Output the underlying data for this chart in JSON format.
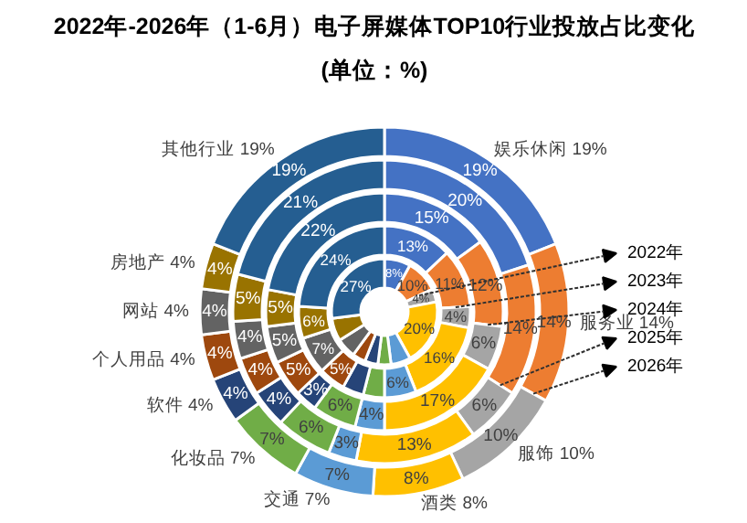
{
  "chart_data": {
    "type": "donut",
    "title": "2022年-2026年（1-6月）电子屏媒体TOP10行业投放占比变化",
    "subtitle": "(单位：%)",
    "categories": [
      "娱乐休闲",
      "服务业",
      "服饰",
      "酒类",
      "交通",
      "化妆品",
      "软件",
      "个人用品",
      "网站",
      "房地产",
      "其他行业"
    ],
    "colors": [
      "#4472c4",
      "#ed7d31",
      "#a5a5a5",
      "#ffc000",
      "#5b9bd5",
      "#70ad47",
      "#264478",
      "#9e480e",
      "#636363",
      "#997300",
      "#255e91"
    ],
    "series": [
      {
        "name": "2022年",
        "values": [
          8,
          10,
          4,
          20,
          6,
          4,
          4,
          4,
          6,
          7,
          27
        ],
        "value_labels": [
          "8%",
          "10%",
          "4%",
          "20%",
          null,
          null,
          null,
          null,
          null,
          null,
          "27%"
        ]
      },
      {
        "name": "2023年",
        "values": [
          13,
          11,
          4,
          16,
          6,
          4,
          4,
          5,
          7,
          6,
          24
        ],
        "value_labels": [
          "13%",
          "11%",
          "4%",
          "16%",
          "6%",
          null,
          null,
          "5%",
          "7%",
          "6%",
          "24%"
        ]
      },
      {
        "name": "2024年",
        "values": [
          15,
          12,
          6,
          17,
          4,
          6,
          3,
          5,
          5,
          5,
          22
        ],
        "value_labels": [
          "15%",
          "12%",
          "6%",
          "17%",
          "4%",
          "6%",
          "3%",
          "5%",
          "5%",
          "5%",
          "22%"
        ]
      },
      {
        "name": "2025年",
        "values": [
          20,
          14,
          6,
          13,
          3,
          6,
          4,
          4,
          4,
          5,
          21
        ],
        "value_labels": [
          "20%",
          "14%",
          "6%",
          "13%",
          "3%",
          "6%",
          "4%",
          "4%",
          "4%",
          "5%",
          "21%"
        ]
      },
      {
        "name": "2026年",
        "values": [
          19,
          14,
          10,
          8,
          7,
          7,
          4,
          4,
          4,
          4,
          19
        ],
        "value_labels": [
          "19%",
          "14%",
          "10%",
          "8%",
          "7%",
          "7%",
          "4%",
          "4%",
          "4%",
          "4%",
          "19%"
        ]
      }
    ],
    "data_labels": true,
    "legend": "right"
  }
}
